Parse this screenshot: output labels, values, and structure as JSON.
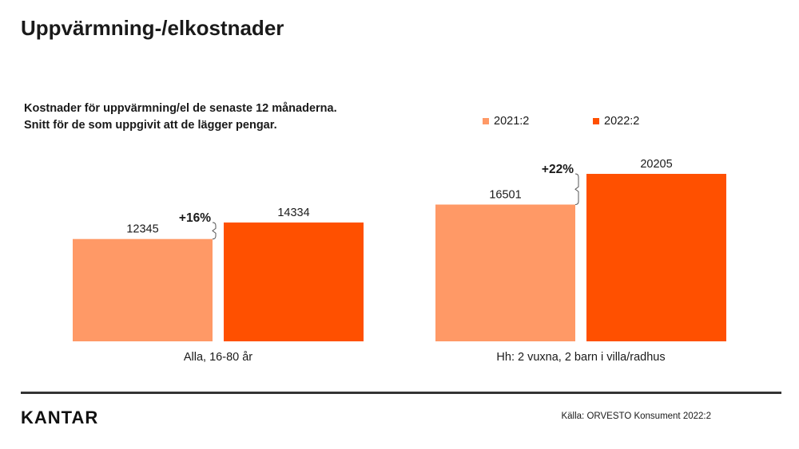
{
  "page": {
    "title": "Uppvärmning-/elkostnader",
    "subtitle_line1": "Kostnader för uppvärmning/el de senaste 12 månaderna.",
    "subtitle_line2": "Snitt för de som uppgivit att de lägger pengar.",
    "source": "Källa: ORVESTO Konsument 2022:2",
    "logo": "KANTAR"
  },
  "chart_data": {
    "type": "bar",
    "title": "",
    "xlabel": "",
    "ylabel": "",
    "categories": [
      "Alla, 16-80 år",
      "Hh: 2 vuxna, 2 barn i villa/radhus"
    ],
    "series": [
      {
        "name": "2021:2",
        "values": [
          12345,
          16501
        ],
        "color": "#FF9966"
      },
      {
        "name": "2022:2",
        "values": [
          14334,
          20205
        ],
        "color": "#FF5000"
      }
    ],
    "annotations": [
      "+16%",
      "+22%"
    ],
    "ylim": [
      0,
      20205
    ],
    "grid": false,
    "legend": "top-right",
    "data_labels": true
  }
}
